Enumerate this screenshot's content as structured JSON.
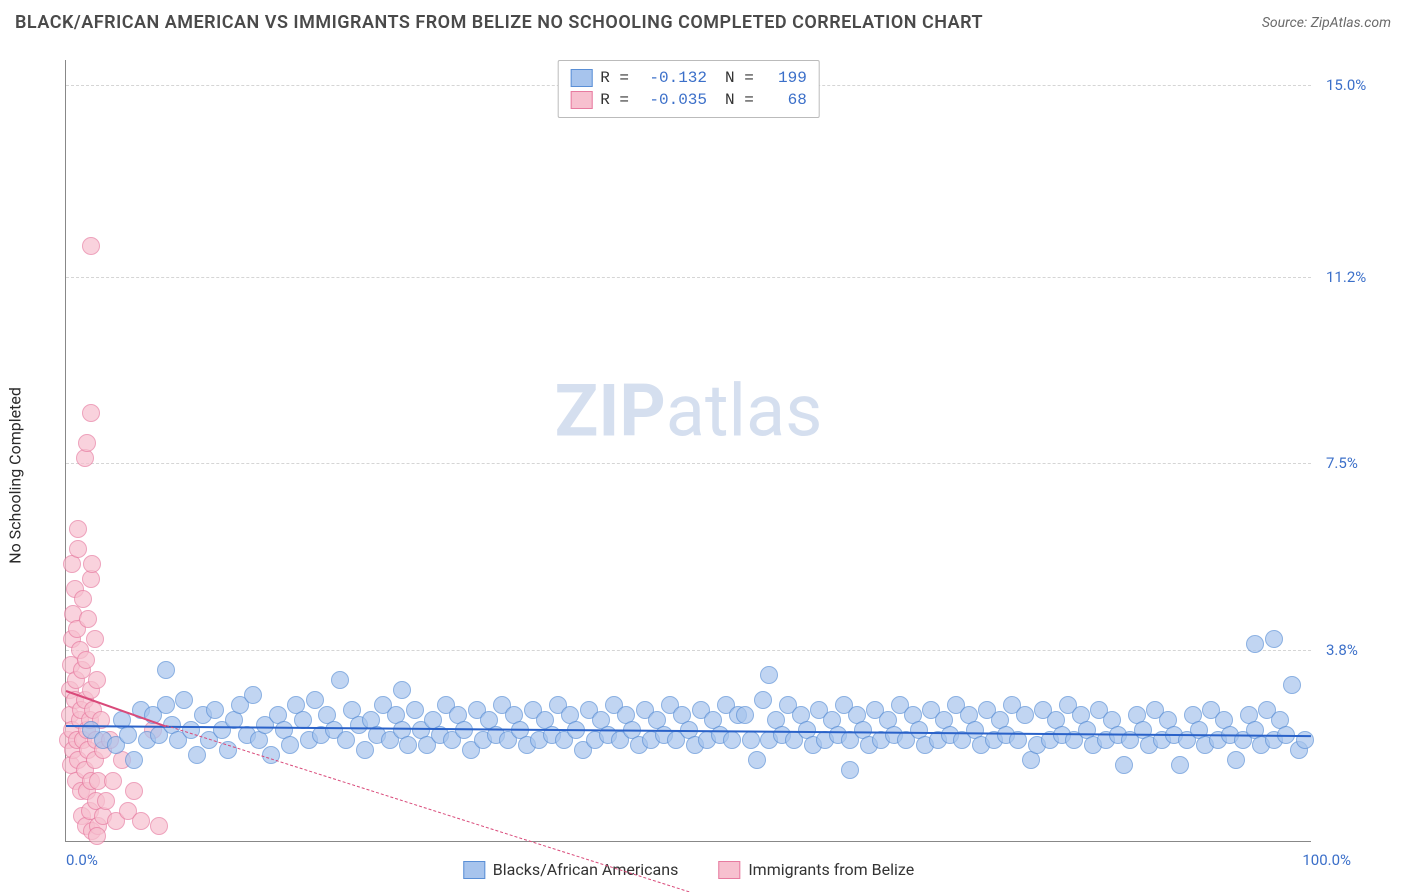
{
  "header": {
    "title": "BLACK/AFRICAN AMERICAN VS IMMIGRANTS FROM BELIZE NO SCHOOLING COMPLETED CORRELATION CHART",
    "source_prefix": "Source: ",
    "source_name": "ZipAtlas.com"
  },
  "ylabel": "No Schooling Completed",
  "watermark_bold": "ZIP",
  "watermark_rest": "atlas",
  "axes": {
    "x_min": 0,
    "x_max": 100,
    "y_min": 0,
    "y_max": 15.5,
    "x_ticks": [
      {
        "v": 0,
        "label": "0.0%",
        "align": "left"
      },
      {
        "v": 100,
        "label": "100.0%",
        "align": "right"
      }
    ],
    "y_ticks": [
      {
        "v": 3.8,
        "label": "3.8%"
      },
      {
        "v": 7.5,
        "label": "7.5%"
      },
      {
        "v": 11.2,
        "label": "11.2%"
      },
      {
        "v": 15.0,
        "label": "15.0%"
      }
    ]
  },
  "legend_top": [
    {
      "color_fill": "#a7c4ed",
      "color_border": "#5a8fd6",
      "r_label": "R =",
      "r_val": "-0.132",
      "n_label": "N =",
      "n_val": "199"
    },
    {
      "color_fill": "#f7c0cf",
      "color_border": "#e77ba0",
      "r_label": "R =",
      "r_val": "-0.035",
      "n_label": "N =",
      "n_val": "68"
    }
  ],
  "legend_bottom": [
    {
      "color_fill": "#a7c4ed",
      "color_border": "#5a8fd6",
      "label": "Blacks/African Americans"
    },
    {
      "color_fill": "#f7c0cf",
      "color_border": "#e77ba0",
      "label": "Immigrants from Belize"
    }
  ],
  "series_blue": {
    "fill": "#a7c4ed",
    "border": "#5a8fd6",
    "opacity": 0.7,
    "radius": 9,
    "reg_color": "#2a62c9",
    "reg": {
      "x1": 0,
      "y1": 2.3,
      "x2": 100,
      "y2": 2.1,
      "width": 2.5,
      "style": "solid"
    },
    "points": [
      [
        2,
        2.2
      ],
      [
        3,
        2.0
      ],
      [
        4,
        1.9
      ],
      [
        4.5,
        2.4
      ],
      [
        5,
        2.1
      ],
      [
        5.5,
        1.6
      ],
      [
        6,
        2.6
      ],
      [
        6.5,
        2.0
      ],
      [
        7,
        2.5
      ],
      [
        7.5,
        2.1
      ],
      [
        8,
        2.7
      ],
      [
        8,
        3.4
      ],
      [
        8.5,
        2.3
      ],
      [
        9,
        2.0
      ],
      [
        9.5,
        2.8
      ],
      [
        10,
        2.2
      ],
      [
        10.5,
        1.7
      ],
      [
        11,
        2.5
      ],
      [
        11.5,
        2.0
      ],
      [
        12,
        2.6
      ],
      [
        12.5,
        2.2
      ],
      [
        13,
        1.8
      ],
      [
        13.5,
        2.4
      ],
      [
        14,
        2.7
      ],
      [
        14.5,
        2.1
      ],
      [
        15,
        2.9
      ],
      [
        15.5,
        2.0
      ],
      [
        16,
        2.3
      ],
      [
        16.5,
        1.7
      ],
      [
        17,
        2.5
      ],
      [
        17.5,
        2.2
      ],
      [
        18,
        1.9
      ],
      [
        18.5,
        2.7
      ],
      [
        19,
        2.4
      ],
      [
        19.5,
        2.0
      ],
      [
        20,
        2.8
      ],
      [
        20.5,
        2.1
      ],
      [
        21,
        2.5
      ],
      [
        21.5,
        2.2
      ],
      [
        22,
        3.2
      ],
      [
        22.5,
        2.0
      ],
      [
        23,
        2.6
      ],
      [
        23.5,
        2.3
      ],
      [
        24,
        1.8
      ],
      [
        24.5,
        2.4
      ],
      [
        25,
        2.1
      ],
      [
        25.5,
        2.7
      ],
      [
        26,
        2.0
      ],
      [
        26.5,
        2.5
      ],
      [
        27,
        2.2
      ],
      [
        27,
        3.0
      ],
      [
        27.5,
        1.9
      ],
      [
        28,
        2.6
      ],
      [
        28.5,
        2.2
      ],
      [
        29,
        1.9
      ],
      [
        29.5,
        2.4
      ],
      [
        30,
        2.1
      ],
      [
        30.5,
        2.7
      ],
      [
        31,
        2.0
      ],
      [
        31.5,
        2.5
      ],
      [
        32,
        2.2
      ],
      [
        32.5,
        1.8
      ],
      [
        33,
        2.6
      ],
      [
        33.5,
        2.0
      ],
      [
        34,
        2.4
      ],
      [
        34.5,
        2.1
      ],
      [
        35,
        2.7
      ],
      [
        35.5,
        2.0
      ],
      [
        36,
        2.5
      ],
      [
        36.5,
        2.2
      ],
      [
        37,
        1.9
      ],
      [
        37.5,
        2.6
      ],
      [
        38,
        2.0
      ],
      [
        38.5,
        2.4
      ],
      [
        39,
        2.1
      ],
      [
        39.5,
        2.7
      ],
      [
        40,
        2.0
      ],
      [
        40.5,
        2.5
      ],
      [
        41,
        2.2
      ],
      [
        41.5,
        1.8
      ],
      [
        42,
        2.6
      ],
      [
        42.5,
        2.0
      ],
      [
        43,
        2.4
      ],
      [
        43.5,
        2.1
      ],
      [
        44,
        2.7
      ],
      [
        44.5,
        2.0
      ],
      [
        45,
        2.5
      ],
      [
        45.5,
        2.2
      ],
      [
        46,
        1.9
      ],
      [
        46.5,
        2.6
      ],
      [
        47,
        2.0
      ],
      [
        47.5,
        2.4
      ],
      [
        48,
        2.1
      ],
      [
        48.5,
        2.7
      ],
      [
        49,
        2.0
      ],
      [
        49.5,
        2.5
      ],
      [
        50,
        2.2
      ],
      [
        50.5,
        1.9
      ],
      [
        51,
        2.6
      ],
      [
        51.5,
        2.0
      ],
      [
        52,
        2.4
      ],
      [
        52.5,
        2.1
      ],
      [
        53,
        2.7
      ],
      [
        53.5,
        2.0
      ],
      [
        54,
        2.5
      ],
      [
        54.5,
        2.5
      ],
      [
        55,
        2.0
      ],
      [
        55.5,
        1.6
      ],
      [
        56,
        2.8
      ],
      [
        56.5,
        2.0
      ],
      [
        56.5,
        3.3
      ],
      [
        57,
        2.4
      ],
      [
        57.5,
        2.1
      ],
      [
        58,
        2.7
      ],
      [
        58.5,
        2.0
      ],
      [
        59,
        2.5
      ],
      [
        59.5,
        2.2
      ],
      [
        60,
        1.9
      ],
      [
        60.5,
        2.6
      ],
      [
        61,
        2.0
      ],
      [
        61.5,
        2.4
      ],
      [
        62,
        2.1
      ],
      [
        62.5,
        2.7
      ],
      [
        63,
        2.0
      ],
      [
        63,
        1.4
      ],
      [
        63.5,
        2.5
      ],
      [
        64,
        2.2
      ],
      [
        64.5,
        1.9
      ],
      [
        65,
        2.6
      ],
      [
        65.5,
        2.0
      ],
      [
        66,
        2.4
      ],
      [
        66.5,
        2.1
      ],
      [
        67,
        2.7
      ],
      [
        67.5,
        2.0
      ],
      [
        68,
        2.5
      ],
      [
        68.5,
        2.2
      ],
      [
        69,
        1.9
      ],
      [
        69.5,
        2.6
      ],
      [
        70,
        2.0
      ],
      [
        70.5,
        2.4
      ],
      [
        71,
        2.1
      ],
      [
        71.5,
        2.7
      ],
      [
        72,
        2.0
      ],
      [
        72.5,
        2.5
      ],
      [
        73,
        2.2
      ],
      [
        73.5,
        1.9
      ],
      [
        74,
        2.6
      ],
      [
        74.5,
        2.0
      ],
      [
        75,
        2.4
      ],
      [
        75.5,
        2.1
      ],
      [
        76,
        2.7
      ],
      [
        76.5,
        2.0
      ],
      [
        77,
        2.5
      ],
      [
        77.5,
        1.6
      ],
      [
        78,
        1.9
      ],
      [
        78.5,
        2.6
      ],
      [
        79,
        2.0
      ],
      [
        79.5,
        2.4
      ],
      [
        80,
        2.1
      ],
      [
        80.5,
        2.7
      ],
      [
        81,
        2.0
      ],
      [
        81.5,
        2.5
      ],
      [
        82,
        2.2
      ],
      [
        82.5,
        1.9
      ],
      [
        83,
        2.6
      ],
      [
        83.5,
        2.0
      ],
      [
        84,
        2.4
      ],
      [
        84.5,
        2.1
      ],
      [
        85,
        1.5
      ],
      [
        85.5,
        2.0
      ],
      [
        86,
        2.5
      ],
      [
        86.5,
        2.2
      ],
      [
        87,
        1.9
      ],
      [
        87.5,
        2.6
      ],
      [
        88,
        2.0
      ],
      [
        88.5,
        2.4
      ],
      [
        89,
        2.1
      ],
      [
        89.5,
        1.5
      ],
      [
        90,
        2.0
      ],
      [
        90.5,
        2.5
      ],
      [
        91,
        2.2
      ],
      [
        91.5,
        1.9
      ],
      [
        92,
        2.6
      ],
      [
        92.5,
        2.0
      ],
      [
        93,
        2.4
      ],
      [
        93.5,
        2.1
      ],
      [
        94,
        1.6
      ],
      [
        94.5,
        2.0
      ],
      [
        95,
        2.5
      ],
      [
        95.5,
        2.2
      ],
      [
        95.5,
        3.9
      ],
      [
        96,
        1.9
      ],
      [
        96.5,
        2.6
      ],
      [
        97,
        2.0
      ],
      [
        97.5,
        2.4
      ],
      [
        97,
        4.0
      ],
      [
        98,
        2.1
      ],
      [
        98.5,
        3.1
      ],
      [
        99,
        1.8
      ],
      [
        99.5,
        2.0
      ]
    ]
  },
  "series_pink": {
    "fill": "#f7c0cf",
    "border": "#e77ba0",
    "opacity": 0.7,
    "radius": 9,
    "reg_color": "#d94a7a",
    "reg_solid": {
      "x1": 0,
      "y1": 3.0,
      "x2": 8,
      "y2": 2.3,
      "width": 2.5,
      "style": "solid"
    },
    "reg_dash": {
      "x1": 8,
      "y1": 2.3,
      "x2": 50,
      "y2": -1.0,
      "width": 1,
      "style": "dashed"
    },
    "points": [
      [
        0.2,
        2.0
      ],
      [
        0.3,
        2.5
      ],
      [
        0.3,
        3.0
      ],
      [
        0.4,
        1.5
      ],
      [
        0.4,
        3.5
      ],
      [
        0.5,
        2.2
      ],
      [
        0.5,
        4.0
      ],
      [
        0.5,
        5.5
      ],
      [
        0.6,
        1.8
      ],
      [
        0.6,
        4.5
      ],
      [
        0.7,
        2.8
      ],
      [
        0.7,
        5.0
      ],
      [
        0.8,
        1.2
      ],
      [
        0.8,
        3.2
      ],
      [
        0.9,
        2.0
      ],
      [
        0.9,
        4.2
      ],
      [
        1.0,
        1.6
      ],
      [
        1.0,
        5.8
      ],
      [
        1.0,
        6.2
      ],
      [
        1.1,
        2.4
      ],
      [
        1.1,
        3.8
      ],
      [
        1.2,
        1.0
      ],
      [
        1.2,
        2.6
      ],
      [
        1.3,
        3.4
      ],
      [
        1.3,
        0.5
      ],
      [
        1.4,
        2.0
      ],
      [
        1.4,
        4.8
      ],
      [
        1.5,
        1.4
      ],
      [
        1.5,
        2.8
      ],
      [
        1.6,
        0.3
      ],
      [
        1.6,
        3.6
      ],
      [
        1.7,
        2.2
      ],
      [
        1.7,
        1.0
      ],
      [
        1.8,
        4.4
      ],
      [
        1.8,
        1.8
      ],
      [
        1.9,
        0.6
      ],
      [
        1.9,
        2.4
      ],
      [
        2.0,
        3.0
      ],
      [
        2.0,
        1.2
      ],
      [
        2.0,
        5.2
      ],
      [
        2.1,
        0.2
      ],
      [
        2.1,
        5.5
      ],
      [
        2.2,
        2.6
      ],
      [
        2.3,
        1.6
      ],
      [
        2.3,
        4.0
      ],
      [
        2.4,
        0.8
      ],
      [
        2.4,
        2.0
      ],
      [
        2.5,
        3.2
      ],
      [
        2.6,
        1.2
      ],
      [
        2.6,
        0.3
      ],
      [
        2.8,
        2.4
      ],
      [
        3.0,
        0.5
      ],
      [
        3.0,
        1.8
      ],
      [
        3.2,
        0.8
      ],
      [
        3.5,
        2.0
      ],
      [
        3.8,
        1.2
      ],
      [
        4.0,
        0.4
      ],
      [
        4.5,
        1.6
      ],
      [
        5.0,
        0.6
      ],
      [
        5.5,
        1.0
      ],
      [
        6.0,
        0.4
      ],
      [
        7.0,
        2.2
      ],
      [
        1.5,
        7.6
      ],
      [
        1.7,
        7.9
      ],
      [
        2.0,
        8.5
      ],
      [
        2.0,
        11.8
      ],
      [
        7.5,
        0.3
      ],
      [
        2.5,
        0.1
      ]
    ]
  }
}
